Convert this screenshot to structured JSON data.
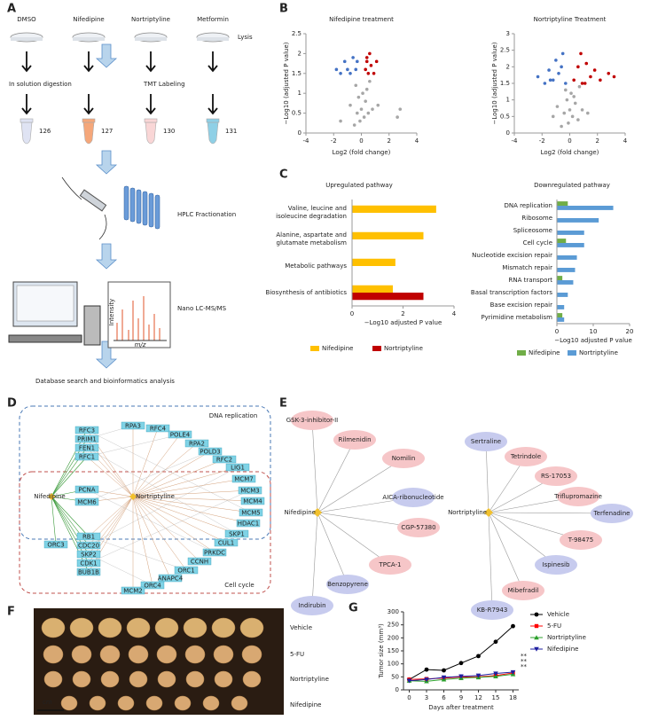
{
  "panel_labels": [
    "A",
    "B",
    "C",
    "D",
    "E",
    "F",
    "G"
  ],
  "panel_a": {
    "groups": [
      "DMSO",
      "Nifedipine",
      "Nortriptyline",
      "Metformin"
    ],
    "lysis": "Lysis",
    "digestion": "In solution digestion",
    "labeling": "TMT Labeling",
    "channels": [
      126,
      127,
      130,
      131
    ],
    "hplc": "HPLC Fractionation",
    "lcms": "Nano LC-MS/MS",
    "spectrum_y": "Intensity",
    "spectrum_x": "m/z",
    "final": "Database search and bioinformatics analysis"
  },
  "panel_d": {
    "boxes": [
      "DNA replication",
      "Cell cycle"
    ],
    "drugs": [
      "Nifedipine",
      "Nortriptyline"
    ],
    "genes": [
      "RFC3",
      "PRIM1",
      "FEN1",
      "RFC1",
      "PCNA",
      "MCM6",
      "RB1",
      "CDC20",
      "SKP2",
      "CDK1",
      "BUB1B",
      "ORC3",
      "RPA3",
      "RFC4",
      "POLE4",
      "RPA2",
      "POLD3",
      "RFC2",
      "LIG1",
      "MCM7",
      "MCM3",
      "MCM4",
      "MCM5",
      "HDAC1",
      "SKP1",
      "CUL1",
      "PRKDC",
      "CCNH",
      "ORC1",
      "ANAPC4",
      "ORC4",
      "MCM2"
    ]
  },
  "panel_e": {
    "networks": [
      {
        "center": "Nifedipine",
        "nodes": [
          {
            "label": "GSK-3-inhibitor-II",
            "color": "#f6c6c8"
          },
          {
            "label": "Rilmenidin",
            "color": "#f6c6c8"
          },
          {
            "label": "Nomilin",
            "color": "#f6c6c8"
          },
          {
            "label": "AICA-ribonucleotide",
            "color": "#c7cbee"
          },
          {
            "label": "CGP-57380",
            "color": "#f6c6c8"
          },
          {
            "label": "TPCA-1",
            "color": "#f6c6c8"
          },
          {
            "label": "Benzopyrene",
            "color": "#c7cbee"
          },
          {
            "label": "Indirubin",
            "color": "#c7cbee"
          }
        ]
      },
      {
        "center": "Nortriptyline",
        "nodes": [
          {
            "label": "Sertraline",
            "color": "#c7cbee"
          },
          {
            "label": "Tetrindole",
            "color": "#f6c6c8"
          },
          {
            "label": "RS-17053",
            "color": "#f6c6c8"
          },
          {
            "label": "Triflupromazine",
            "color": "#f6c6c8"
          },
          {
            "label": "Terfenadine",
            "color": "#c7cbee"
          },
          {
            "label": "T-98475",
            "color": "#f6c6c8"
          },
          {
            "label": "Ispinesib",
            "color": "#c7cbee"
          },
          {
            "label": "Mibefradil",
            "color": "#f6c6c8"
          },
          {
            "label": "KB-R7943",
            "color": "#c7cbee"
          }
        ]
      }
    ]
  },
  "panel_f": {
    "groups": [
      "Vehicle",
      "5-FU",
      "Nortriptyline",
      "Nifedipine"
    ],
    "scale": "cm"
  },
  "chart_data": [
    {
      "type": "scatter",
      "title": "Nifedipine treatment",
      "xlabel": "Log2 (fold change)",
      "ylabel": "−Log10 (adjusted P value)",
      "xlim": [
        -4,
        4
      ],
      "xticks": [
        -4,
        -2,
        0,
        2,
        4
      ],
      "ylim": [
        0,
        2.5
      ],
      "yticks": [
        0,
        0.5,
        1,
        1.5,
        2,
        2.5
      ],
      "series": [
        {
          "color": "#a6a6a6",
          "x": [
            -0.5,
            -0.3,
            -0.2,
            -0.1,
            0,
            0.1,
            0.2,
            0.3,
            0.5,
            -0.8,
            0.8,
            -0.4,
            0.4,
            1.2,
            2.6,
            2.8,
            -1.5,
            0.6
          ],
          "values": [
            0.2,
            0.5,
            0.9,
            0.3,
            0.6,
            1.0,
            0.4,
            0.8,
            0.5,
            0.7,
            0.6,
            1.2,
            1.1,
            0.7,
            0.4,
            0.6,
            0.3,
            1.3
          ]
        },
        {
          "color": "#4472c4",
          "x": [
            -1.8,
            -1.5,
            -1.2,
            -1.0,
            -0.8,
            -0.6,
            -0.4,
            -0.3
          ],
          "values": [
            1.6,
            1.5,
            1.8,
            1.6,
            1.5,
            1.9,
            1.6,
            1.8
          ]
        },
        {
          "color": "#c00000",
          "x": [
            0.3,
            0.4,
            0.5,
            0.7,
            0.9,
            1.1,
            0.6,
            0.4
          ],
          "values": [
            1.6,
            1.8,
            1.5,
            1.7,
            1.5,
            1.8,
            2.0,
            1.9
          ]
        }
      ]
    },
    {
      "type": "scatter",
      "title": "Nortriptyline Treatment",
      "xlabel": "Log2 (fold change)",
      "ylabel": "−Log10 (adjusted P value)",
      "xlim": [
        -4,
        4
      ],
      "xticks": [
        -4,
        -2,
        0,
        2,
        4
      ],
      "ylim": [
        0,
        3
      ],
      "yticks": [
        0,
        0.5,
        1,
        1.5,
        2,
        2.5,
        3
      ],
      "series": [
        {
          "color": "#a6a6a6",
          "x": [
            -0.6,
            -0.4,
            -0.2,
            -0.1,
            0,
            0.1,
            0.2,
            0.4,
            0.6,
            -0.9,
            0.9,
            -0.3,
            0.3,
            1.3,
            -1.2,
            0.7
          ],
          "values": [
            0.2,
            0.6,
            1.0,
            0.3,
            0.7,
            1.2,
            0.5,
            0.9,
            0.4,
            0.8,
            0.7,
            1.3,
            1.1,
            0.6,
            0.5,
            1.4
          ]
        },
        {
          "color": "#4472c4",
          "x": [
            -2.3,
            -1.8,
            -1.5,
            -1.2,
            -1.0,
            -0.8,
            -0.5,
            -0.3,
            -1.4,
            -0.6
          ],
          "values": [
            1.7,
            1.5,
            1.9,
            1.6,
            2.2,
            1.8,
            2.4,
            1.5,
            1.6,
            2.0
          ]
        },
        {
          "color": "#c00000",
          "x": [
            0.3,
            0.6,
            0.9,
            1.2,
            1.5,
            1.8,
            2.2,
            2.8,
            3.2,
            0.8,
            1.1
          ],
          "values": [
            1.6,
            2.0,
            1.5,
            2.1,
            1.7,
            1.9,
            1.6,
            1.8,
            1.7,
            2.4,
            1.5
          ]
        }
      ]
    },
    {
      "type": "hbar",
      "title": "Upregulated pathway",
      "xlabel": "−Log10 adjusted P value",
      "categories": [
        "Valine, leucine and isoleucine degradation",
        "Alanine, aspartate and glutamate metabolism",
        "Metabolic pathways",
        "Biosynthesis of antibiotics"
      ],
      "xlim": [
        0,
        4
      ],
      "xticks": [
        0,
        2,
        4
      ],
      "series": [
        {
          "name": "Nifedipine",
          "color": "#ffc000",
          "values": [
            3.3,
            2.8,
            1.7,
            1.6
          ]
        },
        {
          "name": "Nortriptyline",
          "color": "#c00000",
          "values": [
            null,
            null,
            null,
            2.8
          ]
        }
      ]
    },
    {
      "type": "hbar",
      "title": "Downregulated pathway",
      "xlabel": "−Log10 adjusted P value",
      "categories": [
        "DNA replication",
        "Ribosome",
        "Spliceosome",
        "Cell cycle",
        "Nucleotide excision repair",
        "Mismatch repair",
        "RNA transport",
        "Basal transcription factors",
        "Base excision repair",
        "Pyrimidine metabolism"
      ],
      "xlim": [
        0,
        20
      ],
      "xticks": [
        0,
        10,
        20
      ],
      "series": [
        {
          "name": "Nifedipine",
          "color": "#70ad47",
          "values": [
            3,
            null,
            null,
            2.5,
            null,
            null,
            1.5,
            null,
            null,
            1.5
          ]
        },
        {
          "name": "Nortriptyline",
          "color": "#5b9bd5",
          "values": [
            15.5,
            11.5,
            7.5,
            7.5,
            5.5,
            5,
            4.5,
            3,
            2,
            2
          ]
        }
      ]
    },
    {
      "type": "line",
      "xlabel": "Days after treatment",
      "ylabel": "Tumor size (mm³)",
      "x": [
        0,
        3,
        6,
        9,
        12,
        15,
        18
      ],
      "xlim": [
        -1,
        19
      ],
      "xticks": [
        0,
        3,
        6,
        9,
        12,
        15,
        18
      ],
      "ylim": [
        0,
        300
      ],
      "yticks": [
        0,
        50,
        100,
        150,
        200,
        250,
        300
      ],
      "series": [
        {
          "name": "Vehicle",
          "color": "#000000",
          "marker": "circle",
          "values": [
            40,
            78,
            75,
            103,
            130,
            185,
            245
          ]
        },
        {
          "name": "5-FU",
          "color": "#ff0000",
          "marker": "square",
          "values": [
            40,
            42,
            45,
            50,
            50,
            55,
            65
          ]
        },
        {
          "name": "Nortriptyline",
          "color": "#2ca02c",
          "marker": "triangle",
          "values": [
            35,
            33,
            40,
            45,
            48,
            52,
            60
          ]
        },
        {
          "name": "Nifedipine",
          "color": "#1f1fa0",
          "marker": "triangle-down",
          "values": [
            35,
            40,
            48,
            52,
            55,
            63,
            68
          ]
        }
      ],
      "annotations": [
        {
          "text": "**",
          "color": "#ff0000"
        },
        {
          "text": "**",
          "color": "#2ca02c"
        },
        {
          "text": "**",
          "color": "#1f1fa0"
        }
      ]
    }
  ]
}
